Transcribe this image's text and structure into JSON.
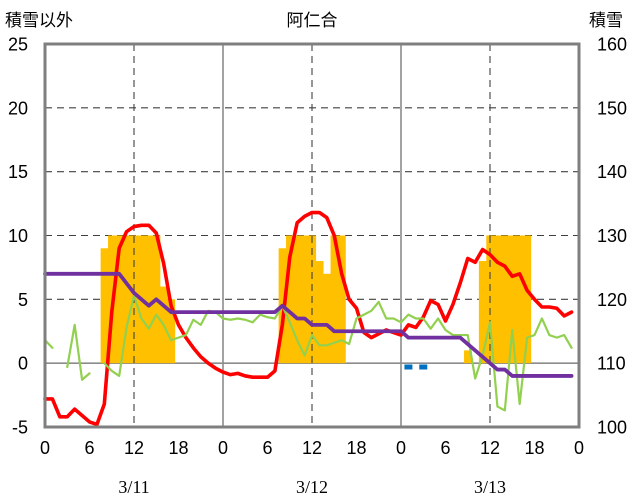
{
  "chart_data": {
    "type": "line",
    "title": "阿仁合",
    "ylabel": "積雪以外",
    "y2label": "積雪",
    "ylim": [
      -5,
      25
    ],
    "y2lim": [
      100,
      160
    ],
    "yticks": [
      "25",
      "20",
      "15",
      "10",
      "5",
      "0",
      "-5"
    ],
    "y2ticks": [
      "160",
      "150",
      "140",
      "130",
      "120",
      "110",
      "100"
    ],
    "xtick_labels": [
      "0",
      "6",
      "12",
      "18",
      "0",
      "6",
      "12",
      "18",
      "0",
      "6",
      "12",
      "18",
      "0"
    ],
    "date_labels": [
      "3/11",
      "3/12",
      "3/13"
    ],
    "grid": true,
    "x": [
      "3/11 0",
      "3/11 1",
      "3/11 2",
      "3/11 3",
      "3/11 4",
      "3/11 5",
      "3/11 6",
      "3/11 7",
      "3/11 8",
      "3/11 9",
      "3/11 10",
      "3/11 11",
      "3/11 12",
      "3/11 13",
      "3/11 14",
      "3/11 15",
      "3/11 16",
      "3/11 17",
      "3/11 18",
      "3/11 19",
      "3/11 20",
      "3/11 21",
      "3/11 22",
      "3/11 23",
      "3/12 0",
      "3/12 1",
      "3/12 2",
      "3/12 3",
      "3/12 4",
      "3/12 5",
      "3/12 6",
      "3/12 7",
      "3/12 8",
      "3/12 9",
      "3/12 10",
      "3/12 11",
      "3/12 12",
      "3/12 13",
      "3/12 14",
      "3/12 15",
      "3/12 16",
      "3/12 17",
      "3/12 18",
      "3/12 19",
      "3/12 20",
      "3/12 21",
      "3/12 22",
      "3/12 23",
      "3/13 0",
      "3/13 1",
      "3/13 2",
      "3/13 3",
      "3/13 4",
      "3/13 5",
      "3/13 6",
      "3/13 7",
      "3/13 8",
      "3/13 9",
      "3/13 10",
      "3/13 11",
      "3/13 12",
      "3/13 13",
      "3/13 14",
      "3/13 15",
      "3/13 16",
      "3/13 17",
      "3/13 18",
      "3/13 19",
      "3/13 20",
      "3/13 21",
      "3/13 22",
      "3/13 23"
    ],
    "series": [
      {
        "kind": "bar",
        "axis": "left",
        "color": "#FFC000",
        "values": [
          0,
          0,
          0,
          0,
          0,
          0,
          0,
          0,
          9,
          10,
          10,
          10,
          10,
          10,
          10,
          10,
          6,
          5,
          0,
          0,
          0,
          0,
          0,
          0,
          0,
          0,
          0,
          0,
          0,
          0,
          0,
          0,
          9,
          10,
          10,
          10,
          10,
          8,
          7,
          10,
          10,
          0,
          0,
          0,
          0,
          0,
          0,
          0,
          0,
          0,
          0,
          0,
          0,
          0,
          0,
          0,
          0,
          1,
          0,
          8,
          10,
          10,
          10,
          10,
          10,
          10,
          0,
          0,
          0,
          0,
          0,
          0
        ]
      },
      {
        "kind": "line",
        "axis": "left",
        "color": "#FF0000",
        "values": [
          -2.8,
          -2.8,
          -4.2,
          -4.2,
          -3.6,
          -4.1,
          -4.6,
          -4.8,
          -3.2,
          4.0,
          9.0,
          10.3,
          10.7,
          10.8,
          10.8,
          10.2,
          7.8,
          4.5,
          3.0,
          2.0,
          1.2,
          0.5,
          0.0,
          -0.4,
          -0.7,
          -0.9,
          -0.8,
          -1.0,
          -1.1,
          -1.1,
          -1.1,
          -0.6,
          3.0,
          8.3,
          11.0,
          11.5,
          11.8,
          11.8,
          11.4,
          10.0,
          7.0,
          5.0,
          4.3,
          2.4,
          2.0,
          2.3,
          2.6,
          2.4,
          2.2,
          3.0,
          2.8,
          3.6,
          4.9,
          4.6,
          3.3,
          4.6,
          6.3,
          8.2,
          7.9,
          8.9,
          8.5,
          7.9,
          7.6,
          6.8,
          7.0,
          5.7,
          5.0,
          4.4,
          4.4,
          4.3,
          3.7,
          4.0
        ]
      },
      {
        "kind": "line",
        "axis": "left",
        "color": "#92D050",
        "values": [
          1.8,
          1.2,
          null,
          -0.3,
          3.0,
          -1.3,
          -0.8,
          null,
          0.0,
          -0.6,
          -1.0,
          2.8,
          5.3,
          3.5,
          2.7,
          3.8,
          3.0,
          1.8,
          2.0,
          2.2,
          3.4,
          3.0,
          4.1,
          4.0,
          3.5,
          3.4,
          3.5,
          3.4,
          3.2,
          3.8,
          3.6,
          3.5,
          4.5,
          3.2,
          1.8,
          0.6,
          2.2,
          1.4,
          1.4,
          1.6,
          1.8,
          1.5,
          3.5,
          3.8,
          4.1,
          4.8,
          3.5,
          3.5,
          3.2,
          3.8,
          3.5,
          3.5,
          2.7,
          3.5,
          2.6,
          2.2,
          2.2,
          2.2,
          -1.2,
          0.6,
          3.2,
          -3.4,
          -3.7,
          2.6,
          -3.2,
          2.0,
          2.2,
          3.5,
          2.2,
          2.0,
          2.2,
          1.2
        ]
      },
      {
        "kind": "line",
        "axis": "right",
        "color": "#7030A0",
        "values": [
          124,
          124,
          124,
          124,
          124,
          124,
          124,
          124,
          124,
          124,
          124,
          122.5,
          121,
          120,
          119,
          120,
          119,
          118,
          118,
          118,
          118,
          118,
          118,
          118,
          118,
          118,
          118,
          118,
          118,
          118,
          118,
          118,
          119,
          118,
          117,
          117,
          116,
          116,
          116,
          115,
          115,
          115,
          115,
          115,
          115,
          115,
          115,
          115,
          115,
          114,
          114,
          114,
          114,
          114,
          114,
          114,
          114,
          113,
          112,
          111,
          110,
          109,
          109,
          108,
          108,
          108,
          108,
          108,
          108,
          108,
          108,
          108
        ]
      },
      {
        "kind": "marker",
        "axis": "left",
        "color": "#0070C0",
        "values": [
          null,
          null,
          null,
          null,
          null,
          null,
          null,
          null,
          null,
          null,
          null,
          null,
          null,
          null,
          null,
          null,
          null,
          null,
          null,
          null,
          null,
          null,
          null,
          null,
          null,
          null,
          null,
          null,
          null,
          null,
          null,
          null,
          null,
          null,
          null,
          null,
          null,
          null,
          null,
          null,
          null,
          null,
          null,
          null,
          null,
          null,
          null,
          null,
          null,
          -0.3,
          null,
          -0.3,
          null,
          null,
          null,
          null,
          null,
          null,
          null,
          null,
          null,
          null,
          null,
          null,
          null,
          null,
          null,
          null,
          null,
          null,
          null,
          null
        ]
      }
    ]
  }
}
